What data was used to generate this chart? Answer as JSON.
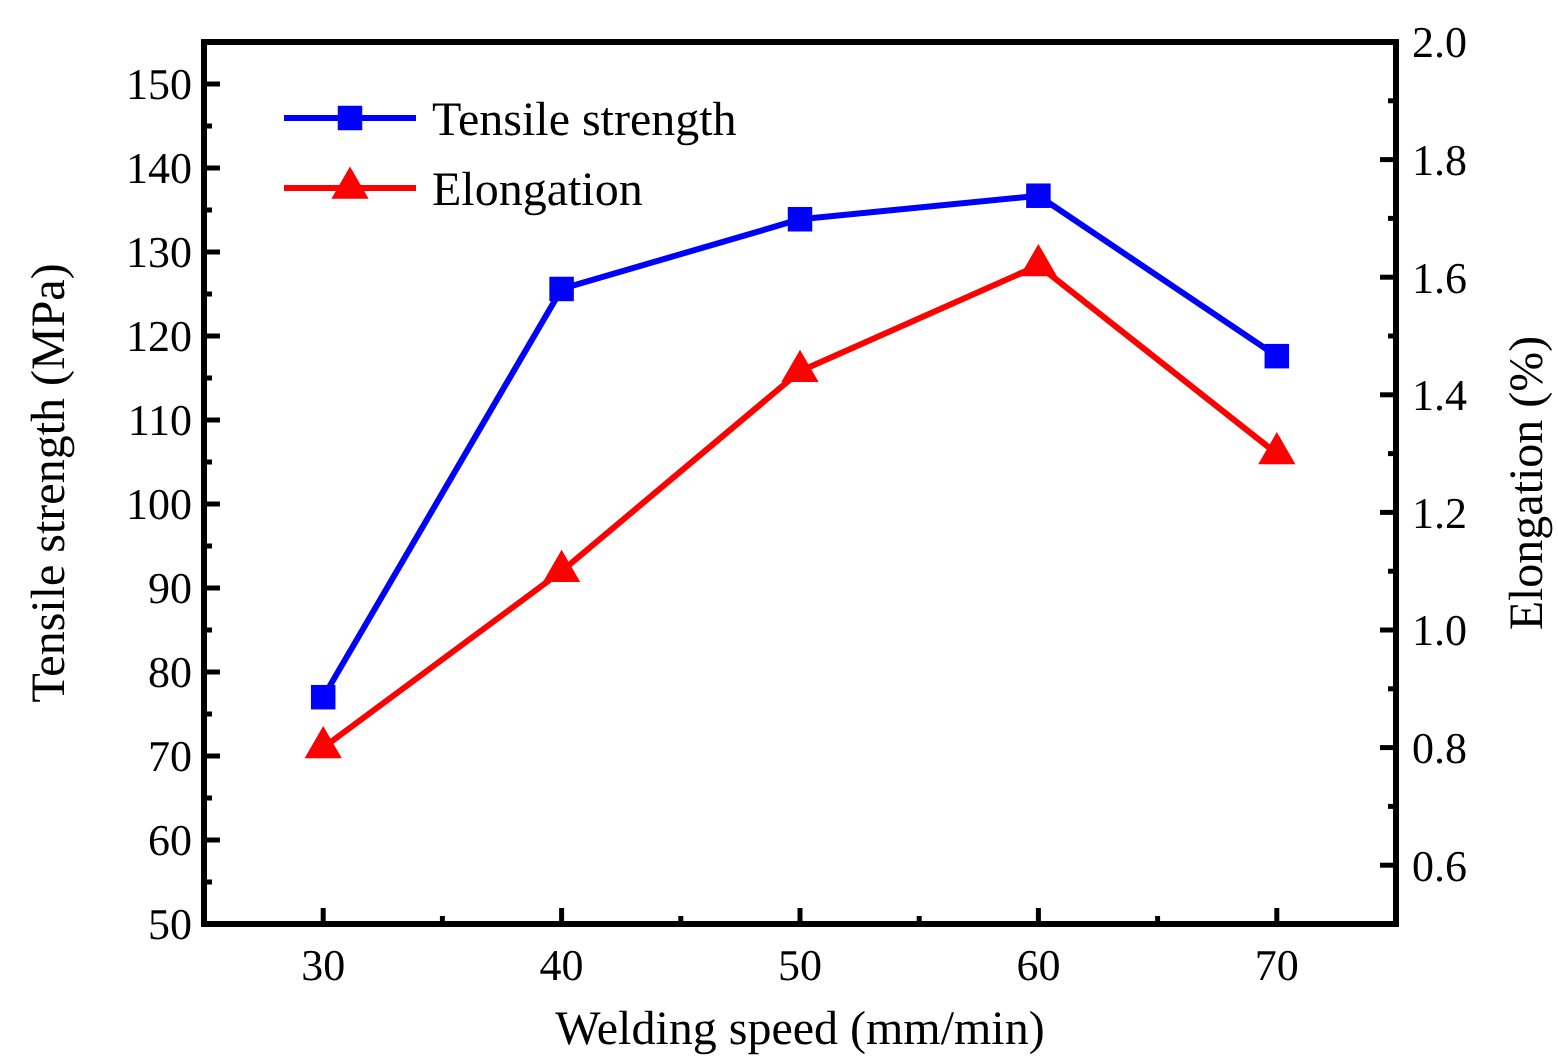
{
  "chart_data": {
    "type": "line",
    "xlabel": "Welding speed (mm/min)",
    "ylabel": "Tensile strength (MPa)",
    "y2label": "Elongation (%)",
    "x": [
      30,
      40,
      50,
      60,
      70
    ],
    "xlim": [
      25,
      75
    ],
    "xticks": [
      30,
      {
        "value": 35,
        "label": null
      },
      40,
      {
        "value": 45,
        "label": null
      },
      50,
      {
        "value": 55,
        "label": null
      },
      60,
      {
        "value": 65,
        "label": null
      },
      70
    ],
    "ylim": [
      50,
      155
    ],
    "yticks": [
      50,
      {
        "value": 55,
        "label": null
      },
      60,
      {
        "value": 65,
        "label": null
      },
      70,
      {
        "value": 75,
        "label": null
      },
      80,
      {
        "value": 85,
        "label": null
      },
      90,
      {
        "value": 95,
        "label": null
      },
      100,
      {
        "value": 105,
        "label": null
      },
      110,
      {
        "value": 115,
        "label": null
      },
      120,
      {
        "value": 125,
        "label": null
      },
      130,
      {
        "value": 135,
        "label": null
      },
      140,
      {
        "value": 145,
        "label": null
      },
      150
    ],
    "y2lim": [
      0.5,
      2.0
    ],
    "y2ticks": [
      {
        "value": 0.6,
        "label": "0.6"
      },
      {
        "value": 0.7,
        "label": null
      },
      {
        "value": 0.8,
        "label": "0.8"
      },
      {
        "value": 0.9,
        "label": null
      },
      {
        "value": 1.0,
        "label": "1.0"
      },
      {
        "value": 1.1,
        "label": null
      },
      {
        "value": 1.2,
        "label": "1.2"
      },
      {
        "value": 1.3,
        "label": null
      },
      {
        "value": 1.4,
        "label": "1.4"
      },
      {
        "value": 1.5,
        "label": null
      },
      {
        "value": 1.6,
        "label": "1.6"
      },
      {
        "value": 1.7,
        "label": null
      },
      {
        "value": 1.8,
        "label": "1.8"
      },
      {
        "value": 1.9,
        "label": null
      },
      {
        "value": 2.0,
        "label": "2.0"
      }
    ],
    "legend": "top left",
    "grid": false,
    "series": [
      {
        "name": "Tensile strength",
        "color": "#0000ff",
        "marker": "square",
        "values": [
          77,
          125.6,
          133.9,
          136.7,
          117.6
        ]
      },
      {
        "name": "Elongation",
        "color": "#ff0000",
        "marker": "triangle",
        "axis": "y2",
        "values": [
          0.8,
          1.1,
          1.44,
          1.62,
          1.3
        ]
      }
    ]
  }
}
